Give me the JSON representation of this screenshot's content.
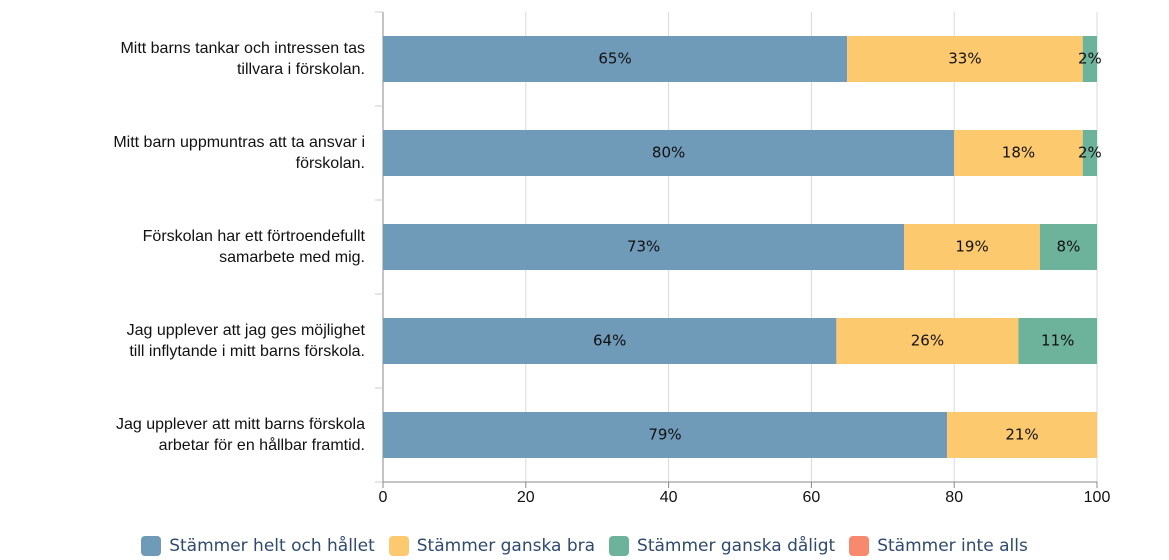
{
  "chart_data": {
    "type": "stacked_barh",
    "categories": [
      "Mitt barns tankar och intressen tas\ntillvara i förskolan.",
      "Mitt barn uppmuntras att ta ansvar i\nförskolan.",
      "Förskolan har ett förtroendefullt\nsamarbete med mig.",
      "Jag upplever att jag ges möjlighet\ntill inflytande i mitt barns förskola.",
      "Jag upplever att mitt barns förskola\narbetar för en hållbar framtid."
    ],
    "series": [
      {
        "name": "Stämmer helt och hållet",
        "color": "#6f9ab8",
        "values": [
          65,
          80,
          73,
          63.5,
          79
        ],
        "value_labels": [
          "65%",
          "80%",
          "73%",
          "64%",
          "79%"
        ]
      },
      {
        "name": "Stämmer ganska bra",
        "color": "#fdc96f",
        "values": [
          33,
          18,
          19,
          25.5,
          21
        ],
        "value_labels": [
          "33%",
          "18%",
          "19%",
          "26%",
          "21%"
        ]
      },
      {
        "name": "Stämmer ganska dåligt",
        "color": "#6db39b",
        "values": [
          2,
          2,
          8,
          11,
          0
        ],
        "value_labels": [
          "2%",
          "2%",
          "8%",
          "11%",
          null
        ]
      },
      {
        "name": "Stämmer inte alls",
        "color": "#f7896f",
        "values": [
          0,
          0,
          0,
          0,
          0
        ]
      }
    ],
    "xlim": [
      0,
      100
    ],
    "xticks": [
      0,
      20,
      40,
      60,
      80,
      100
    ],
    "grid": true,
    "legend": "bottom"
  }
}
